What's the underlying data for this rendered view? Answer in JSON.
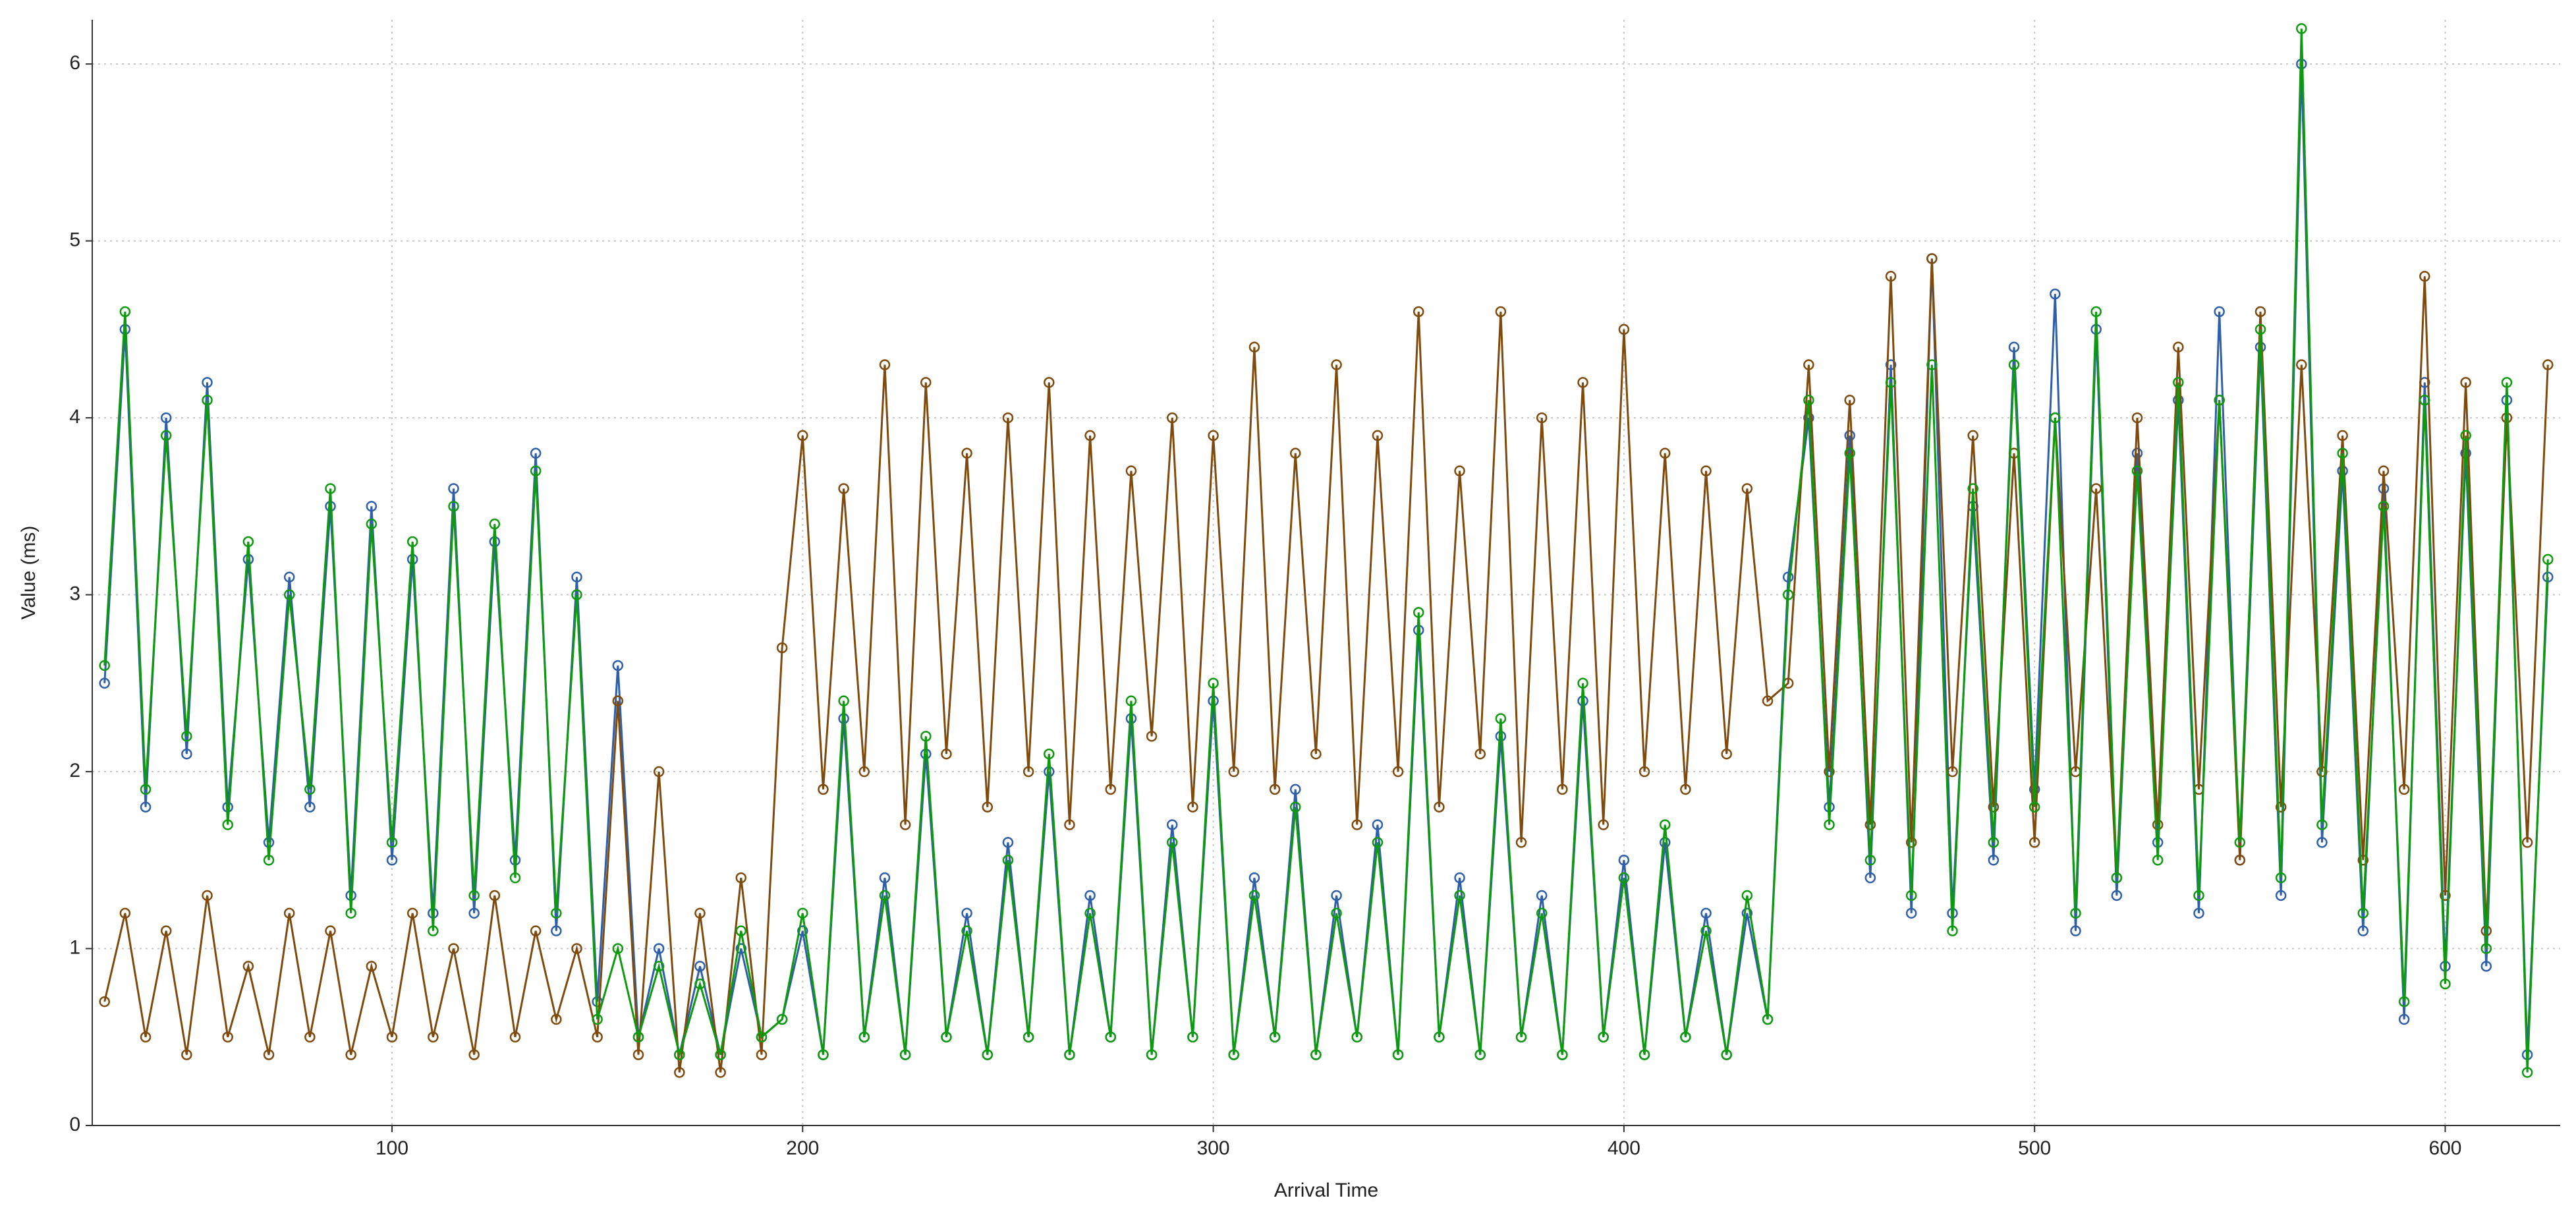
{
  "chart_data": {
    "type": "line",
    "x_label": "Arrival Time",
    "y_label": "Value (ms)",
    "xlim": [
      27,
      628
    ],
    "ylim": [
      0,
      6.25
    ],
    "xticks": [
      100,
      200,
      300,
      400,
      500,
      600
    ],
    "yticks": [
      0,
      1,
      2,
      3,
      4,
      5,
      6
    ],
    "grid": true,
    "markers": true,
    "x": [
      30,
      35,
      40,
      45,
      50,
      55,
      60,
      65,
      70,
      75,
      80,
      85,
      90,
      95,
      100,
      105,
      110,
      115,
      120,
      125,
      130,
      135,
      140,
      145,
      150,
      155,
      160,
      165,
      170,
      175,
      180,
      185,
      190,
      195,
      200,
      205,
      210,
      215,
      220,
      225,
      230,
      235,
      240,
      245,
      250,
      255,
      260,
      265,
      270,
      275,
      280,
      285,
      290,
      295,
      300,
      305,
      310,
      315,
      320,
      325,
      330,
      335,
      340,
      345,
      350,
      355,
      360,
      365,
      370,
      375,
      380,
      385,
      390,
      395,
      400,
      405,
      410,
      415,
      420,
      425,
      430,
      435,
      440,
      445,
      450,
      455,
      460,
      465,
      470,
      475,
      480,
      485,
      490,
      495,
      500,
      505,
      510,
      515,
      520,
      525,
      530,
      535,
      540,
      545,
      550,
      555,
      560,
      565,
      570,
      575,
      580,
      585,
      590,
      595,
      600,
      605,
      610,
      615,
      620,
      625
    ],
    "series": [
      {
        "color": "#2e5fa8",
        "values": [
          2.5,
          4.5,
          1.8,
          4.0,
          2.1,
          4.2,
          1.8,
          3.2,
          1.6,
          3.1,
          1.8,
          3.5,
          1.3,
          3.5,
          1.5,
          3.2,
          1.2,
          3.6,
          1.2,
          3.3,
          1.5,
          3.8,
          1.1,
          3.1,
          0.7,
          2.6,
          0.5,
          1.0,
          0.4,
          0.9,
          0.4,
          1.0,
          0.5,
          0.6,
          1.1,
          0.4,
          2.3,
          0.5,
          1.4,
          0.4,
          2.1,
          0.5,
          1.2,
          0.4,
          1.6,
          0.5,
          2.0,
          0.4,
          1.3,
          0.5,
          2.3,
          0.4,
          1.7,
          0.5,
          2.4,
          0.4,
          1.4,
          0.5,
          1.9,
          0.4,
          1.3,
          0.5,
          1.7,
          0.4,
          2.8,
          0.5,
          1.4,
          0.4,
          2.2,
          0.5,
          1.3,
          0.4,
          2.4,
          0.5,
          1.5,
          0.4,
          1.6,
          0.5,
          1.2,
          0.4,
          1.2,
          0.6,
          3.1,
          4.0,
          1.8,
          3.9,
          1.4,
          4.3,
          1.2,
          4.9,
          1.2,
          3.5,
          1.5,
          4.4,
          1.9,
          4.7,
          1.1,
          4.5,
          1.3,
          3.8,
          1.6,
          4.1,
          1.2,
          4.6,
          1.5,
          4.4,
          1.3,
          6.0,
          1.6,
          3.7,
          1.1,
          3.6,
          0.6,
          4.2,
          0.9,
          3.8,
          0.9,
          4.1,
          0.4,
          3.1
        ]
      },
      {
        "color": "#7f4a0e",
        "values": [
          0.7,
          1.2,
          0.5,
          1.1,
          0.4,
          1.3,
          0.5,
          0.9,
          0.4,
          1.2,
          0.5,
          1.1,
          0.4,
          0.9,
          0.5,
          1.2,
          0.5,
          1.0,
          0.4,
          1.3,
          0.5,
          1.1,
          0.6,
          1.0,
          0.5,
          2.4,
          0.4,
          2.0,
          0.3,
          1.2,
          0.3,
          1.4,
          0.4,
          2.7,
          3.9,
          1.9,
          3.6,
          2.0,
          4.3,
          1.7,
          4.2,
          2.1,
          3.8,
          1.8,
          4.0,
          2.0,
          4.2,
          1.7,
          3.9,
          1.9,
          3.7,
          2.2,
          4.0,
          1.8,
          3.9,
          2.0,
          4.4,
          1.9,
          3.8,
          2.1,
          4.3,
          1.7,
          3.9,
          2.0,
          4.6,
          1.8,
          3.7,
          2.1,
          4.6,
          1.6,
          4.0,
          1.9,
          4.2,
          1.7,
          4.5,
          2.0,
          3.8,
          1.9,
          3.7,
          2.1,
          3.6,
          2.4,
          2.5,
          4.3,
          2.0,
          4.1,
          1.7,
          4.8,
          1.6,
          4.9,
          2.0,
          3.9,
          1.8,
          3.8,
          1.6,
          4.0,
          2.0,
          3.6,
          1.4,
          4.0,
          1.7,
          4.4,
          1.9,
          4.1,
          1.5,
          4.6,
          1.8,
          4.3,
          2.0,
          3.9,
          1.5,
          3.7,
          1.9,
          4.8,
          1.3,
          4.2,
          1.1,
          4.0,
          1.6,
          4.3
        ]
      },
      {
        "color": "#0e9a0e",
        "values": [
          2.6,
          4.6,
          1.9,
          3.9,
          2.2,
          4.1,
          1.7,
          3.3,
          1.5,
          3.0,
          1.9,
          3.6,
          1.2,
          3.4,
          1.6,
          3.3,
          1.1,
          3.5,
          1.3,
          3.4,
          1.4,
          3.7,
          1.2,
          3.0,
          0.6,
          1.0,
          0.5,
          0.9,
          0.4,
          0.8,
          0.4,
          1.1,
          0.5,
          0.6,
          1.2,
          0.4,
          2.4,
          0.5,
          1.3,
          0.4,
          2.2,
          0.5,
          1.1,
          0.4,
          1.5,
          0.5,
          2.1,
          0.4,
          1.2,
          0.5,
          2.4,
          0.4,
          1.6,
          0.5,
          2.5,
          0.4,
          1.3,
          0.5,
          1.8,
          0.4,
          1.2,
          0.5,
          1.6,
          0.4,
          2.9,
          0.5,
          1.3,
          0.4,
          2.3,
          0.5,
          1.2,
          0.4,
          2.5,
          0.5,
          1.4,
          0.4,
          1.7,
          0.5,
          1.1,
          0.4,
          1.3,
          0.6,
          3.0,
          4.1,
          1.7,
          3.8,
          1.5,
          4.2,
          1.3,
          4.3,
          1.1,
          3.6,
          1.6,
          4.3,
          1.8,
          4.0,
          1.2,
          4.6,
          1.4,
          3.7,
          1.5,
          4.2,
          1.3,
          4.1,
          1.6,
          4.5,
          1.4,
          6.2,
          1.7,
          3.8,
          1.2,
          3.5,
          0.7,
          4.1,
          0.8,
          3.9,
          1.0,
          4.2,
          0.3,
          3.2
        ]
      }
    ]
  }
}
